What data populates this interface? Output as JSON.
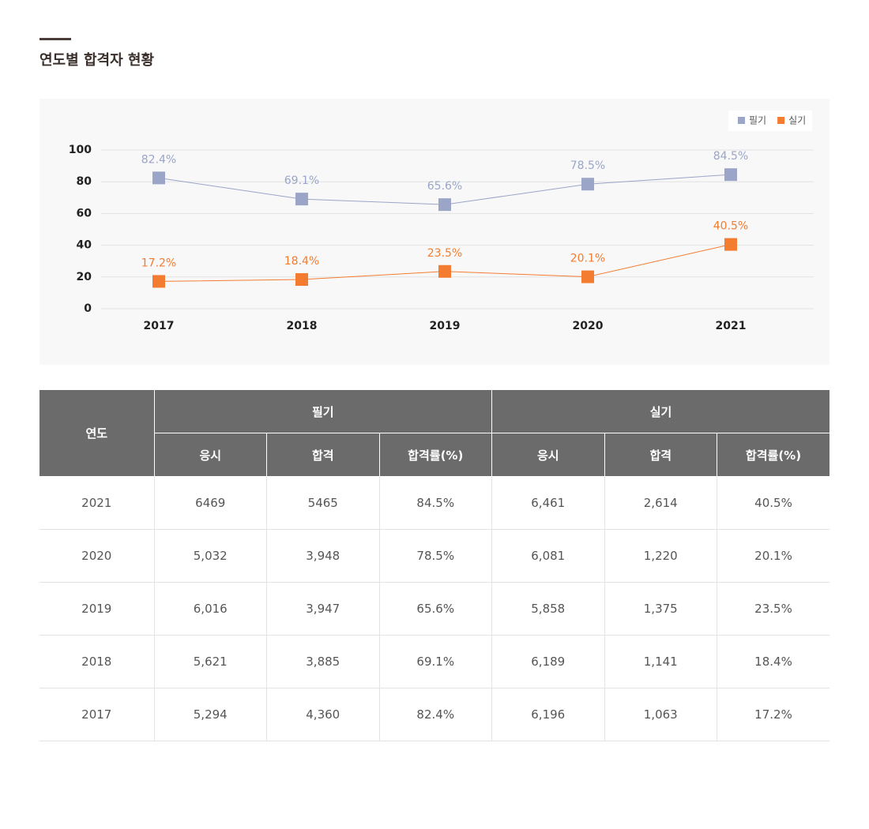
{
  "header": {
    "title": "연도별 합격자 현황"
  },
  "chart_data": {
    "type": "line",
    "categories": [
      "2017",
      "2018",
      "2019",
      "2020",
      "2021"
    ],
    "series": [
      {
        "name": "필기",
        "color": "#9aa5c7",
        "values": [
          82.4,
          69.1,
          65.6,
          78.5,
          84.5
        ],
        "value_labels": [
          "82.4%",
          "69.1%",
          "65.6%",
          "78.5%",
          "84.5%"
        ]
      },
      {
        "name": "실기",
        "color": "#f47c30",
        "values": [
          17.2,
          18.4,
          23.5,
          20.1,
          40.5
        ],
        "value_labels": [
          "17.2%",
          "18.4%",
          "23.5%",
          "20.1%",
          "40.5%"
        ]
      }
    ],
    "ylim": [
      0,
      100
    ],
    "yticks": [
      0,
      20,
      40,
      60,
      80,
      100
    ],
    "grid": true,
    "legend": "top-right"
  },
  "table": {
    "header_top": [
      "연도",
      "필기",
      "실기"
    ],
    "header_sub": [
      "응시",
      "합격",
      "합격률(%)",
      "응시",
      "합격",
      "합격률(%)"
    ],
    "rows": [
      [
        "2021",
        "6469",
        "5465",
        "84.5%",
        "6,461",
        "2,614",
        "40.5%"
      ],
      [
        "2020",
        "5,032",
        "3,948",
        "78.5%",
        "6,081",
        "1,220",
        "20.1%"
      ],
      [
        "2019",
        "6,016",
        "3,947",
        "65.6%",
        "5,858",
        "1,375",
        "23.5%"
      ],
      [
        "2018",
        "5,621",
        "3,885",
        "69.1%",
        "6,189",
        "1,141",
        "18.4%"
      ],
      [
        "2017",
        "5,294",
        "4,360",
        "82.4%",
        "6,196",
        "1,063",
        "17.2%"
      ]
    ]
  }
}
